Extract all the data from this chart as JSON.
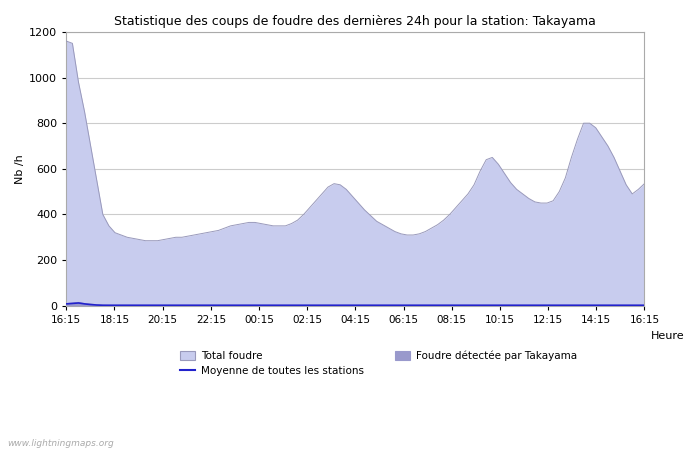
{
  "title": "Statistique des coups de foudre des dernières 24h pour la station: Takayama",
  "xlabel": "Heure",
  "ylabel": "Nb /h",
  "ylim": [
    0,
    1200
  ],
  "yticks": [
    0,
    200,
    400,
    600,
    800,
    1000,
    1200
  ],
  "background_color": "#ffffff",
  "plot_bg_color": "#ffffff",
  "grid_color": "#cccccc",
  "fill_color": "#c8ccee",
  "fill_edge_color": "#9999bb",
  "detected_fill_color": "#9999cc",
  "line_color": "#2222cc",
  "watermark": "www.lightningmaps.org",
  "xtick_labels": [
    "16:15",
    "18:15",
    "20:15",
    "22:15",
    "00:15",
    "02:15",
    "04:15",
    "06:15",
    "08:15",
    "10:15",
    "12:15",
    "14:15",
    "16:15"
  ],
  "total_foudre_label": "Total foudre",
  "moyenne_label": "Moyenne de toutes les stations",
  "detected_label": "Foudre détectée par Takayama",
  "total_values": [
    1160,
    1150,
    980,
    850,
    700,
    550,
    400,
    350,
    320,
    310,
    300,
    295,
    290,
    285,
    285,
    285,
    290,
    295,
    300,
    300,
    305,
    310,
    315,
    320,
    325,
    330,
    340,
    350,
    355,
    360,
    365,
    365,
    360,
    355,
    350,
    350,
    350,
    360,
    375,
    400,
    430,
    460,
    490,
    520,
    535,
    530,
    510,
    480,
    450,
    420,
    395,
    370,
    355,
    340,
    325,
    315,
    310,
    310,
    315,
    325,
    340,
    355,
    375,
    400,
    430,
    460,
    490,
    530,
    590,
    640,
    650,
    620,
    580,
    540,
    510,
    490,
    470,
    455,
    450,
    450,
    460,
    500,
    560,
    650,
    730,
    800,
    800,
    780,
    740,
    700,
    650,
    590,
    530,
    490,
    510,
    535
  ],
  "detected_values": [
    10,
    12,
    15,
    10,
    8,
    5,
    3,
    2,
    2,
    2,
    2,
    2,
    2,
    2,
    2,
    2,
    2,
    2,
    2,
    2,
    2,
    2,
    2,
    2,
    2,
    2,
    2,
    2,
    2,
    2,
    2,
    2,
    2,
    2,
    2,
    2,
    2,
    2,
    2,
    2,
    2,
    2,
    2,
    2,
    2,
    2,
    2,
    2,
    2,
    2,
    2,
    2,
    2,
    2,
    2,
    2,
    2,
    2,
    2,
    2,
    2,
    2,
    2,
    2,
    2,
    2,
    2,
    2,
    2,
    2,
    2,
    2,
    2,
    2,
    2,
    2,
    2,
    2,
    2,
    2,
    2,
    2,
    2,
    2,
    2,
    2,
    2,
    2,
    2,
    2,
    2,
    2,
    2,
    2,
    2,
    2
  ],
  "mean_values": [
    8,
    10,
    12,
    8,
    5,
    3,
    2,
    2,
    2,
    2,
    2,
    2,
    2,
    2,
    2,
    2,
    2,
    2,
    2,
    2,
    2,
    2,
    2,
    2,
    2,
    2,
    2,
    2,
    2,
    2,
    2,
    2,
    2,
    2,
    2,
    2,
    2,
    2,
    2,
    2,
    2,
    2,
    2,
    2,
    2,
    2,
    2,
    2,
    2,
    2,
    2,
    2,
    2,
    2,
    2,
    2,
    2,
    2,
    2,
    2,
    2,
    2,
    2,
    2,
    2,
    2,
    2,
    2,
    2,
    2,
    2,
    2,
    2,
    2,
    2,
    2,
    2,
    2,
    2,
    2,
    2,
    2,
    2,
    2,
    2,
    2,
    2,
    2,
    2,
    2,
    2,
    2,
    2,
    2,
    2,
    2
  ]
}
